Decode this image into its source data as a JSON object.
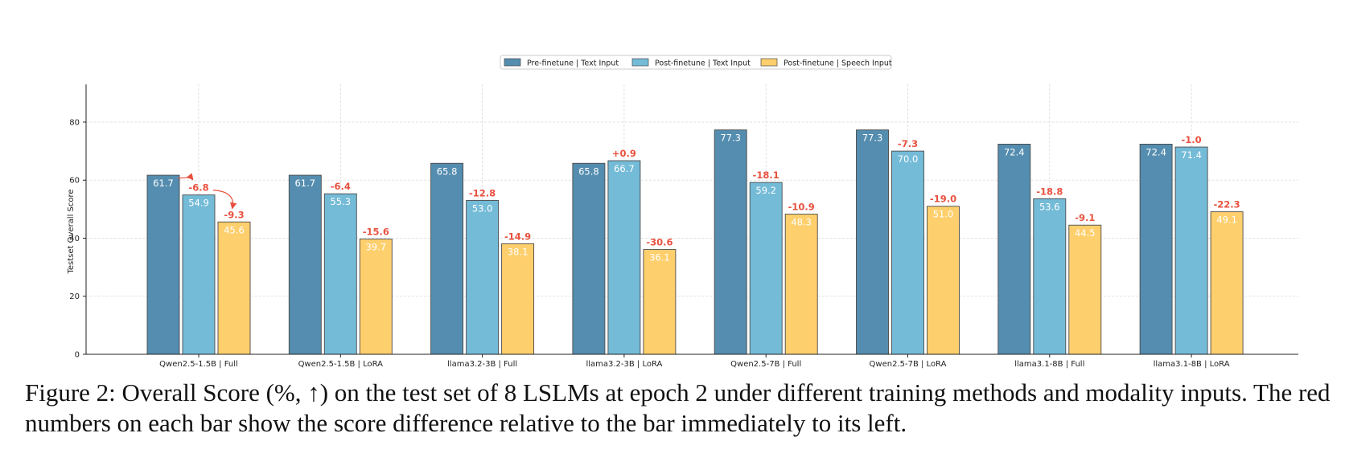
{
  "chart_data": {
    "type": "bar",
    "title": "",
    "xlabel": "",
    "ylabel": "Testset Overall Score",
    "ylim": [
      0,
      93
    ],
    "yticks": [
      0,
      20,
      40,
      60,
      80
    ],
    "grid": true,
    "legend_position": "top-center",
    "categories": [
      "Qwen2.5-1.5B | Full",
      "Qwen2.5-1.5B | LoRA",
      "llama3.2-3B | Full",
      "llama3.2-3B | LoRA",
      "Qwen2.5-7B | Full",
      "Qwen2.5-7B | LoRA",
      "llama3.1-8B | Full",
      "llama3.1-8B | LoRA"
    ],
    "series": [
      {
        "name": "Pre-finetune | Text Input",
        "color": "#548daf",
        "values": [
          61.7,
          61.7,
          65.8,
          65.8,
          77.3,
          77.3,
          72.4,
          72.4
        ],
        "value_labels": [
          "61.7",
          "61.7",
          "65.8",
          "65.8",
          "77.3",
          "77.3",
          "72.4",
          "72.4"
        ],
        "deltas": [
          "",
          "",
          "",
          "",
          "",
          "",
          "",
          ""
        ]
      },
      {
        "name": "Post-finetune | Text Input",
        "color": "#74bbd7",
        "values": [
          54.9,
          55.3,
          53.0,
          66.7,
          59.2,
          70.0,
          53.6,
          71.4
        ],
        "value_labels": [
          "54.9",
          "55.3",
          "53.0",
          "66.7",
          "59.2",
          "70.0",
          "53.6",
          "71.4"
        ],
        "deltas": [
          "-6.8",
          "-6.4",
          "-12.8",
          "+0.9",
          "-18.1",
          "-7.3",
          "-18.8",
          "-1.0"
        ]
      },
      {
        "name": "Post-finetune | Speech Input",
        "color": "#fecf6d",
        "values": [
          45.6,
          39.7,
          38.1,
          36.1,
          48.3,
          51.0,
          44.5,
          49.1
        ],
        "value_labels": [
          "45.6",
          "39.7",
          "38.1",
          "36.1",
          "48.3",
          "51.0",
          "44.5",
          "49.1"
        ],
        "deltas": [
          "-9.3",
          "-15.6",
          "-14.9",
          "-30.6",
          "-10.9",
          "-19.0",
          "-9.1",
          "-22.3"
        ]
      }
    ]
  },
  "caption": "Figure 2: Overall Score (%, ↑) on the test set of 8 LSLMs at epoch 2 under different training methods and modality inputs. The red numbers on each bar show the score difference relative to the bar immediately to its left."
}
